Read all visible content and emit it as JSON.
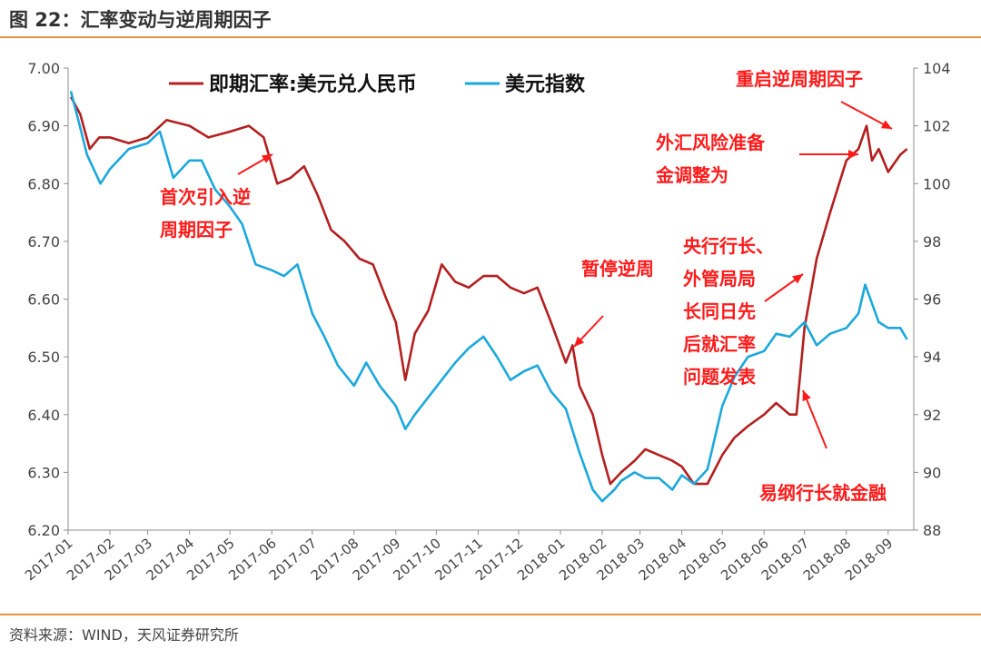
{
  "title": "图 22：汇率变动与逆周期因子",
  "source": "资料来源：WIND，天风证券研究所",
  "chart_data": {
    "type": "line",
    "title": "图 22：汇率变动与逆周期因子",
    "xlabel": "",
    "ylabel": "",
    "y2label": "",
    "x_ticks": [
      "2017-01",
      "2017-02",
      "2017-03",
      "2017-04",
      "2017-05",
      "2017-06",
      "2017-07",
      "2017-08",
      "2017-09",
      "2017-10",
      "2017-11",
      "2017-12",
      "2018-01",
      "2018-02",
      "2018-03",
      "2018-04",
      "2018-05",
      "2018-06",
      "2018-07",
      "2018-08",
      "2018-09"
    ],
    "ylim": [
      6.2,
      7.0
    ],
    "y_ticks": [
      "7.00",
      "6.90",
      "6.80",
      "6.70",
      "6.60",
      "6.50",
      "6.40",
      "6.30",
      "6.20"
    ],
    "y2lim": [
      88,
      104
    ],
    "y2_ticks": [
      "104",
      "102",
      "100",
      "98",
      "96",
      "94",
      "92",
      "90",
      "88"
    ],
    "legend_position": "top",
    "grid": false,
    "series": [
      {
        "name": "即期汇率:美元兑人民币",
        "axis": "left",
        "color": "#b41f1f",
        "x": [
          "2017-01-03",
          "2017-01-10",
          "2017-01-17",
          "2017-01-24",
          "2017-02-01",
          "2017-02-15",
          "2017-03-01",
          "2017-03-15",
          "2017-04-01",
          "2017-04-15",
          "2017-05-01",
          "2017-05-15",
          "2017-05-26",
          "2017-06-05",
          "2017-06-15",
          "2017-06-25",
          "2017-07-05",
          "2017-07-15",
          "2017-07-25",
          "2017-08-05",
          "2017-08-15",
          "2017-08-25",
          "2017-09-01",
          "2017-09-08",
          "2017-09-15",
          "2017-09-25",
          "2017-10-05",
          "2017-10-15",
          "2017-10-25",
          "2017-11-05",
          "2017-11-15",
          "2017-11-25",
          "2017-12-05",
          "2017-12-15",
          "2017-12-25",
          "2018-01-05",
          "2018-01-10",
          "2018-01-15",
          "2018-01-25",
          "2018-02-01",
          "2018-02-07",
          "2018-02-15",
          "2018-02-25",
          "2018-03-05",
          "2018-03-15",
          "2018-03-25",
          "2018-04-01",
          "2018-04-10",
          "2018-04-20",
          "2018-05-01",
          "2018-05-10",
          "2018-05-20",
          "2018-06-01",
          "2018-06-10",
          "2018-06-20",
          "2018-06-25",
          "2018-07-01",
          "2018-07-10",
          "2018-07-20",
          "2018-08-01",
          "2018-08-10",
          "2018-08-16",
          "2018-08-20",
          "2018-08-25",
          "2018-09-01",
          "2018-09-10",
          "2018-09-15"
        ],
        "values": [
          6.95,
          6.92,
          6.86,
          6.88,
          6.88,
          6.87,
          6.88,
          6.91,
          6.9,
          6.88,
          6.89,
          6.9,
          6.88,
          6.8,
          6.81,
          6.83,
          6.78,
          6.72,
          6.7,
          6.67,
          6.66,
          6.6,
          6.56,
          6.46,
          6.54,
          6.58,
          6.66,
          6.63,
          6.62,
          6.64,
          6.64,
          6.62,
          6.61,
          6.62,
          6.56,
          6.49,
          6.52,
          6.45,
          6.4,
          6.33,
          6.28,
          6.3,
          6.32,
          6.34,
          6.33,
          6.32,
          6.31,
          6.28,
          6.28,
          6.33,
          6.36,
          6.38,
          6.4,
          6.42,
          6.4,
          6.4,
          6.55,
          6.67,
          6.75,
          6.84,
          6.86,
          6.9,
          6.84,
          6.86,
          6.82,
          6.85,
          6.86
        ]
      },
      {
        "name": "美元指数",
        "axis": "right",
        "color": "#1ba8dd",
        "x": [
          "2017-01-03",
          "2017-01-08",
          "2017-01-15",
          "2017-01-25",
          "2017-02-01",
          "2017-02-15",
          "2017-03-01",
          "2017-03-10",
          "2017-03-20",
          "2017-04-01",
          "2017-04-10",
          "2017-04-20",
          "2017-05-01",
          "2017-05-10",
          "2017-05-20",
          "2017-06-01",
          "2017-06-10",
          "2017-06-20",
          "2017-07-01",
          "2017-07-10",
          "2017-07-20",
          "2017-08-01",
          "2017-08-10",
          "2017-08-20",
          "2017-09-01",
          "2017-09-08",
          "2017-09-15",
          "2017-09-25",
          "2017-10-05",
          "2017-10-15",
          "2017-10-25",
          "2017-11-05",
          "2017-11-15",
          "2017-11-25",
          "2017-12-05",
          "2017-12-15",
          "2017-12-25",
          "2018-01-05",
          "2018-01-15",
          "2018-01-25",
          "2018-02-01",
          "2018-02-10",
          "2018-02-15",
          "2018-02-25",
          "2018-03-05",
          "2018-03-15",
          "2018-03-25",
          "2018-04-01",
          "2018-04-10",
          "2018-04-20",
          "2018-05-01",
          "2018-05-10",
          "2018-05-20",
          "2018-06-01",
          "2018-06-10",
          "2018-06-20",
          "2018-07-01",
          "2018-07-10",
          "2018-07-20",
          "2018-08-01",
          "2018-08-10",
          "2018-08-15",
          "2018-08-25",
          "2018-09-01",
          "2018-09-10",
          "2018-09-15"
        ],
        "values": [
          103.2,
          102.3,
          101.0,
          100.0,
          100.5,
          101.2,
          101.4,
          101.8,
          100.2,
          100.8,
          100.8,
          99.8,
          99.2,
          98.6,
          97.2,
          97.0,
          96.8,
          97.2,
          95.5,
          94.7,
          93.7,
          93.0,
          93.8,
          93.0,
          92.3,
          91.5,
          92.0,
          92.6,
          93.2,
          93.8,
          94.3,
          94.7,
          94.0,
          93.2,
          93.5,
          93.7,
          92.8,
          92.2,
          90.7,
          89.4,
          89.0,
          89.4,
          89.7,
          90.0,
          89.8,
          89.8,
          89.4,
          89.9,
          89.6,
          90.1,
          92.3,
          93.3,
          94.0,
          94.2,
          94.8,
          94.7,
          95.2,
          94.4,
          94.8,
          95.0,
          95.5,
          96.5,
          95.2,
          95.0,
          95.0,
          94.6
        ]
      }
    ],
    "annotations": [
      {
        "text_lines": [
          "首次引入逆",
          "周期因子"
        ],
        "color": "#ff1a1a"
      },
      {
        "text_lines": [
          "暂停逆周"
        ],
        "color": "#ff1a1a"
      },
      {
        "text_lines": [
          "央行行长、",
          "外管局局",
          "长同日先",
          "后就汇率",
          "问题发表"
        ],
        "color": "#ff1a1a"
      },
      {
        "text_lines": [
          "易纲行长就金融"
        ],
        "color": "#ff1a1a"
      },
      {
        "text_lines": [
          "外汇风险准备",
          "金调整为"
        ],
        "color": "#ff1a1a"
      },
      {
        "text_lines": [
          "重启逆周期因子"
        ],
        "color": "#ff1a1a"
      }
    ]
  }
}
